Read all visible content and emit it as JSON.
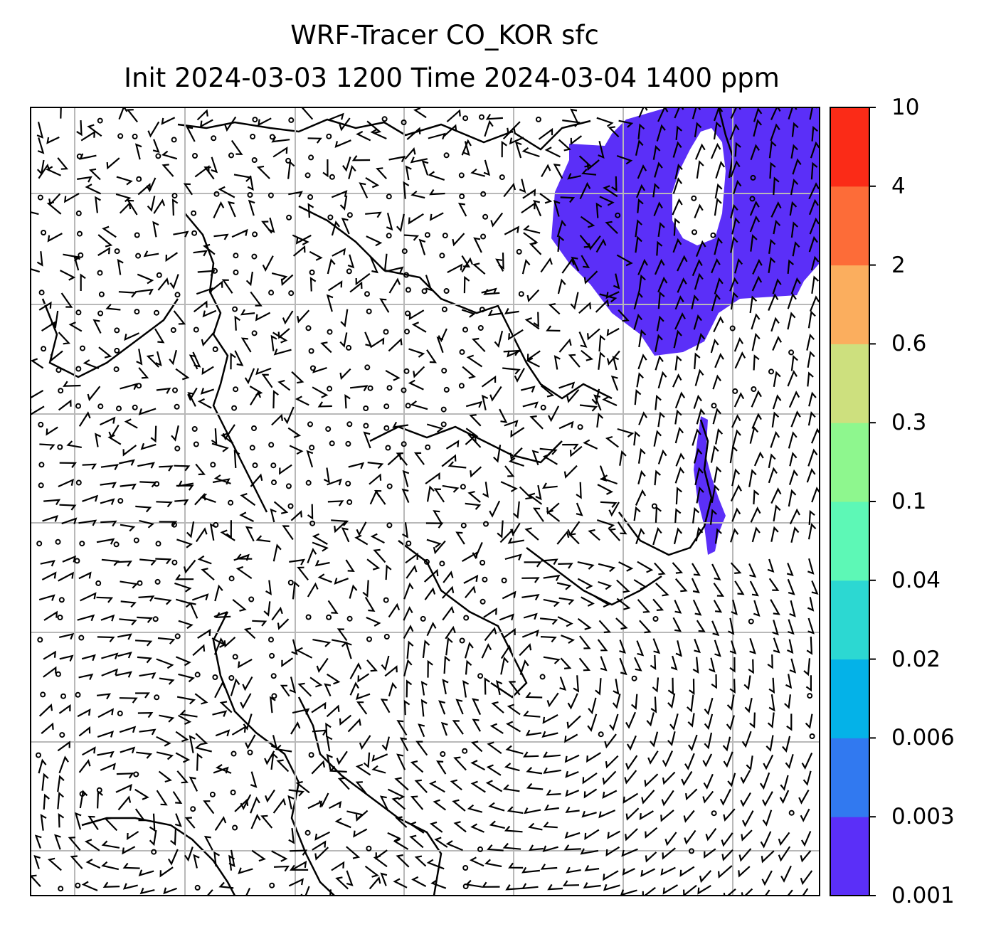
{
  "title": {
    "line1": "WRF-Tracer CO_KOR sfc",
    "line2": "Init 2024-03-03 1200 Time 2024-03-04 1400 ppm"
  },
  "colorbar": {
    "levels": [
      "0.001",
      "0.003",
      "0.006",
      "0.02",
      "0.04",
      "0.1",
      "0.3",
      "0.6",
      "2",
      "4",
      "10"
    ],
    "colors": [
      "#5b2ff8",
      "#3179f0",
      "#04b2e8",
      "#2cd8d2",
      "#5df8b6",
      "#8ef78e",
      "#cde07e",
      "#fbae5e",
      "#fd6c38",
      "#fb2b17"
    ]
  },
  "map": {
    "frame_color": "#000000",
    "grid_color": "#b8b8b8",
    "barb_color": "#000000",
    "plume_color": "#5b2ff8"
  }
}
